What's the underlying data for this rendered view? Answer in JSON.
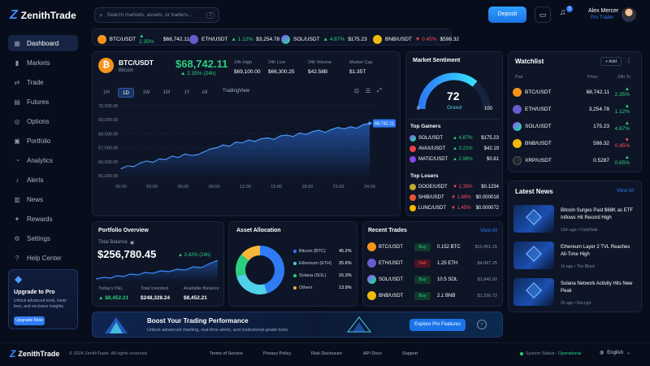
{
  "app": {
    "name": "ZenithTrade",
    "logo_letter": "Z"
  },
  "header": {
    "search_placeholder": "Search markets, assets, or traders...",
    "search_shortcut": "/",
    "deposit_label": "Deposit",
    "notification_count": "3",
    "user_name": "Alex Mercer",
    "user_role": "Pro Trader"
  },
  "ticker": [
    {
      "symbol": "BTC/USDT",
      "change": "▲ 2.35%",
      "price": "$68,742.11",
      "dir": "up",
      "icon": "btc"
    },
    {
      "symbol": "ETH/USDT",
      "change": "▲ 1.12%",
      "price": "$3,254.78",
      "dir": "up",
      "icon": "eth"
    },
    {
      "symbol": "SOL/USDT",
      "change": "▲ 4.87%",
      "price": "$175.23",
      "dir": "up",
      "icon": "sol"
    },
    {
      "symbol": "BNB/USDT",
      "change": "▼ 0.45%",
      "price": "$598.32",
      "dir": "down",
      "icon": "bnb"
    }
  ],
  "sidebar": {
    "items": [
      {
        "label": "Dashboard",
        "icon": "grid-icon",
        "glyph": "▦",
        "active": true
      },
      {
        "label": "Markets",
        "icon": "bar-chart-icon",
        "glyph": "▮",
        "active": false
      },
      {
        "label": "Trade",
        "icon": "swap-icon",
        "glyph": "⇄",
        "active": false
      },
      {
        "label": "Futures",
        "icon": "calendar-icon",
        "glyph": "▤",
        "active": false
      },
      {
        "label": "Options",
        "icon": "target-icon",
        "glyph": "◎",
        "active": false
      },
      {
        "label": "Portfolio",
        "icon": "briefcase-icon",
        "glyph": "▣",
        "active": false
      },
      {
        "label": "Analytics",
        "icon": "pie-icon",
        "glyph": "◔",
        "active": false
      },
      {
        "label": "Alerts",
        "icon": "bell-icon",
        "glyph": "♪",
        "active": false
      },
      {
        "label": "News",
        "icon": "news-icon",
        "glyph": "▥",
        "active": false
      },
      {
        "label": "Rewards",
        "icon": "gift-icon",
        "glyph": "✦",
        "active": false
      },
      {
        "label": "Settings",
        "icon": "gear-icon",
        "glyph": "⚙",
        "active": false
      },
      {
        "label": "Help Center",
        "icon": "help-icon",
        "glyph": "?",
        "active": false
      }
    ],
    "upgrade": {
      "title": "Upgrade to Pro",
      "text": "Unlock advanced tools, lower fees, and exclusive insights.",
      "button": "Upgrade Now"
    }
  },
  "main_chart": {
    "pair": "BTC/USDT",
    "name": "Bitcoin",
    "price": "$68,742.11",
    "change": "▲ 2.35% (24h)",
    "stats": [
      {
        "label": "24h High",
        "value": "$69,100.00"
      },
      {
        "label": "24h Low",
        "value": "$66,300.25"
      },
      {
        "label": "24h Volume",
        "value": "$42.58B"
      },
      {
        "label": "Market Cap",
        "value": "$1.35T"
      }
    ],
    "timeframes": [
      "1H",
      "1D",
      "1W",
      "1M",
      "1Y",
      "All"
    ],
    "active_timeframe": "1D",
    "tradingview_label": "TradingView",
    "price_tag": "68,742.11"
  },
  "chart_data": {
    "type": "area",
    "x_labels": [
      "00:00",
      "03:00",
      "06:00",
      "09:00",
      "12:00",
      "15:00",
      "18:00",
      "21:00",
      "24:00"
    ],
    "y_ticks": [
      "70,000.00",
      "69,000.00",
      "68,000.00",
      "67,000.00",
      "66,000.00",
      "65,000.00"
    ],
    "ylim": [
      65000,
      70000
    ],
    "values": [
      65500,
      65700,
      65650,
      65900,
      66050,
      65950,
      66200,
      66150,
      66400,
      66300,
      66550,
      66450,
      66500,
      66700,
      66900,
      67000,
      67200,
      67100,
      67400,
      67350,
      67550,
      67450,
      67650,
      67700,
      67600,
      67850,
      67900,
      67800,
      68050,
      67950,
      68150,
      68250,
      68100,
      68300,
      68450,
      68350,
      68500,
      68400,
      68650,
      68742
    ]
  },
  "sentiment": {
    "title": "Market Sentiment",
    "value": "72",
    "label": "Greed",
    "min": "0",
    "max": "100",
    "gainers_title": "Top Gainers",
    "gainers": [
      {
        "symbol": "SOL/USDT",
        "change": "▲ 4.87%",
        "price": "$175.23",
        "icon": "sol"
      },
      {
        "symbol": "AVAX/USDT",
        "change": "▲ 3.21%",
        "price": "$42.19",
        "icon": "avax"
      },
      {
        "symbol": "MATIC/USDT",
        "change": "▲ 2.98%",
        "price": "$0.81",
        "icon": "matic"
      }
    ],
    "losers_title": "Top Losers",
    "losers": [
      {
        "symbol": "DOGE/USDT",
        "change": "▼ 2.35%",
        "price": "$0.1234",
        "icon": "doge"
      },
      {
        "symbol": "SHIB/USDT",
        "change": "▼ 1.89%",
        "price": "$0.000018",
        "icon": "shib"
      },
      {
        "symbol": "LUNC/USDT",
        "change": "▼ 1.45%",
        "price": "$0.000072",
        "icon": "lunc"
      }
    ]
  },
  "watchlist": {
    "title": "Watchlist",
    "add_label": "+ Add",
    "headers": [
      "Pair",
      "Price",
      "24h %"
    ],
    "rows": [
      {
        "pair": "BTC/USDT",
        "price": "68,742.11",
        "change": "▲ 2.35%",
        "dir": "up",
        "icon": "btc"
      },
      {
        "pair": "ETH/USDT",
        "price": "3,254.78",
        "change": "▲ 1.12%",
        "dir": "up",
        "icon": "eth"
      },
      {
        "pair": "SOL/USDT",
        "price": "175.23",
        "change": "▲ 4.87%",
        "dir": "up",
        "icon": "sol"
      },
      {
        "pair": "BNB/USDT",
        "price": "598.32",
        "change": "▼ 0.45%",
        "dir": "down",
        "icon": "bnb"
      },
      {
        "pair": "XRP/USDT",
        "price": "0.5287",
        "change": "▲ 0.65%",
        "dir": "up",
        "icon": "xrp"
      }
    ]
  },
  "news": {
    "title": "Latest News",
    "view_all": "View All",
    "items": [
      {
        "headline": "Bitcoin Surges Past $68K as ETF Inflows Hit Record High",
        "meta": "12m ago • CoinDesk"
      },
      {
        "headline": "Ethereum Layer 2 TVL Reaches All-Time High",
        "meta": "1h ago • The Block"
      },
      {
        "headline": "Solana Network Activity Hits New Peak",
        "meta": "2h ago • Decrypt"
      }
    ]
  },
  "portfolio": {
    "title": "Portfolio Overview",
    "balance_label": "Total Balance",
    "balance": "$256,780.45",
    "change": "▲ 3.42% (24h)",
    "stats": [
      {
        "label": "Today's P&L",
        "value": "▲ $8,452.21",
        "color": "green"
      },
      {
        "label": "Total Invested",
        "value": "$248,328.24",
        "color": "white"
      },
      {
        "label": "Available Balance",
        "value": "$8,452.21",
        "color": "white"
      }
    ]
  },
  "allocation": {
    "title": "Asset Allocation",
    "items": [
      {
        "name": "Bitcoin (BTC)",
        "percent": "45.2%",
        "value": 45.2,
        "color": "#2f7bf6"
      },
      {
        "name": "Ethereum (ETH)",
        "percent": "25.6%",
        "value": 25.6,
        "color": "#4fd1e8"
      },
      {
        "name": "Solana (SOL)",
        "percent": "15.3%",
        "value": 15.3,
        "color": "#2bd07f"
      },
      {
        "name": "Others",
        "percent": "13.9%",
        "value": 13.9,
        "color": "#f5b73b"
      }
    ]
  },
  "trades": {
    "title": "Recent Trades",
    "view_all": "View All",
    "rows": [
      {
        "pair": "BTC/USDT",
        "side": "Buy",
        "amount": "0.152 BTC",
        "value": "$10,451.15",
        "icon": "btc"
      },
      {
        "pair": "ETH/USDT",
        "side": "Sell",
        "amount": "1.25 ETH",
        "value": "$4,067.25",
        "icon": "eth"
      },
      {
        "pair": "SOL/USDT",
        "side": "Buy",
        "amount": "10.5 SOL",
        "value": "$1,840.92",
        "icon": "sol"
      },
      {
        "pair": "BNB/USDT",
        "side": "Buy",
        "amount": "2.1 BNB",
        "value": "$1,256.72",
        "icon": "bnb"
      }
    ]
  },
  "promo": {
    "title": "Boost Your Trading Performance",
    "text": "Unlock advanced charting, real-time alerts, and institutional-grade tools.",
    "button": "Explore Pro Features"
  },
  "footer": {
    "copyright": "© 2024 ZenithTrade. All rights reserved.",
    "links": [
      "Terms of Service",
      "Privacy Policy",
      "Risk Disclosure",
      "API Docs",
      "Support"
    ],
    "status_label": "System Status:",
    "status_value": "Operational",
    "language": "English"
  },
  "colors": {
    "accent": "#2f7bf6",
    "up": "#2bd07f",
    "down": "#ff4d5e",
    "background": "#070d1b"
  }
}
